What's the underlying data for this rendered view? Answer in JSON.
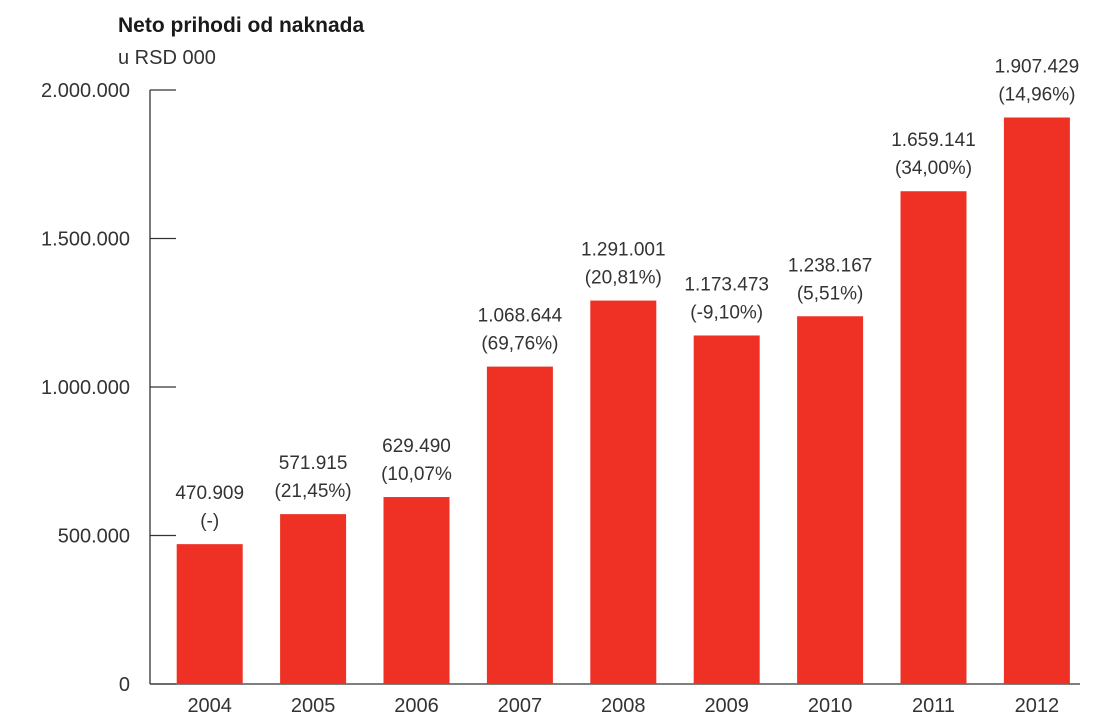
{
  "chart_data": {
    "type": "bar",
    "title": "Neto prihodi od naknada",
    "subtitle": "u RSD 000",
    "categories": [
      "2004",
      "2005",
      "2006",
      "2007",
      "2008",
      "2009",
      "2010",
      "2011",
      "2012"
    ],
    "values": [
      470909,
      571915,
      629490,
      1068644,
      1291001,
      1173473,
      1238167,
      1659141,
      1907429
    ],
    "value_labels": [
      "470.909",
      "571.915",
      "629.490",
      "1.068.644",
      "1.291.001",
      "1.173.473",
      "1.238.167",
      "1.659.141",
      "1.907.429"
    ],
    "change_labels": [
      "(-)",
      "(21,45%)",
      "(10,07%",
      "(69,76%)",
      "(20,81%)",
      "(-9,10%)",
      "(5,51%)",
      "(34,00%)",
      "(14,96%)"
    ],
    "yticks": [
      0,
      500000,
      1000000,
      1500000,
      2000000
    ],
    "ytick_labels": [
      "0",
      "500.000",
      "1.000.000",
      "1.500.000",
      "2.000.000"
    ],
    "ylim": [
      0,
      2000000
    ],
    "xlabel": "",
    "ylabel": "",
    "grid": false,
    "bar_color": "#ee3124",
    "axis_color": "#333333"
  }
}
